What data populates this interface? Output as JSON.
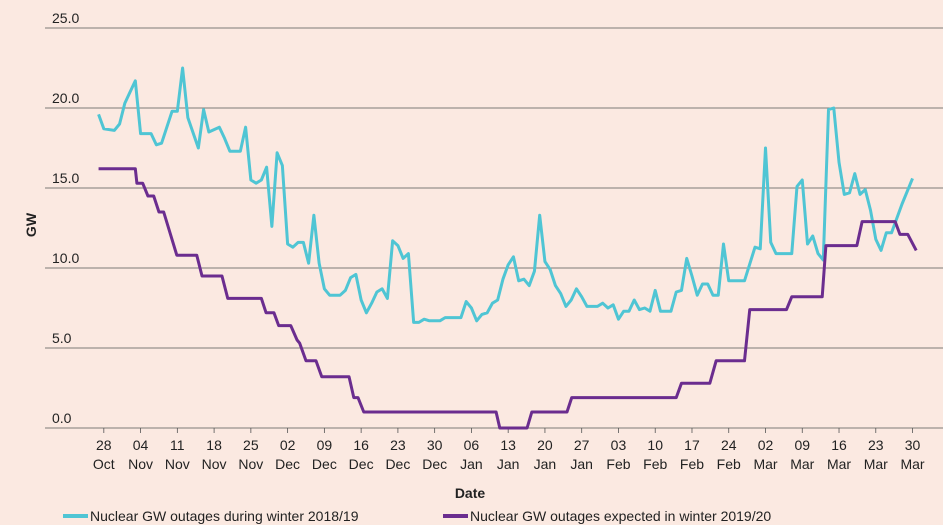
{
  "chart_data": {
    "type": "line",
    "xlabel": "Date",
    "ylabel": "GW",
    "xlim": [
      -11.2,
      159.8
    ],
    "ylim": [
      0,
      25
    ],
    "xticks": [
      {
        "value": 0,
        "label": "28 Oct"
      },
      {
        "value": 7,
        "label": "04 Nov"
      },
      {
        "value": 14,
        "label": "11 Nov"
      },
      {
        "value": 21,
        "label": "18 Nov"
      },
      {
        "value": 28,
        "label": "25 Nov"
      },
      {
        "value": 35,
        "label": "02 Dec"
      },
      {
        "value": 42,
        "label": "09 Dec"
      },
      {
        "value": 49,
        "label": "16 Dec"
      },
      {
        "value": 56,
        "label": "23 Dec"
      },
      {
        "value": 63,
        "label": "30 Dec"
      },
      {
        "value": 70,
        "label": "06 Jan"
      },
      {
        "value": 77,
        "label": "13 Jan"
      },
      {
        "value": 84,
        "label": "20 Jan"
      },
      {
        "value": 91,
        "label": "27 Jan"
      },
      {
        "value": 98,
        "label": "03 Feb"
      },
      {
        "value": 105,
        "label": "10 Feb"
      },
      {
        "value": 112,
        "label": "17 Feb"
      },
      {
        "value": 119,
        "label": "24 Feb"
      },
      {
        "value": 126,
        "label": "02 Mar"
      },
      {
        "value": 133,
        "label": "09 Mar"
      },
      {
        "value": 140,
        "label": "16 Mar"
      },
      {
        "value": 147,
        "label": "23 Mar"
      },
      {
        "value": 154,
        "label": "30 Mar"
      }
    ],
    "yticks": [
      {
        "value": 0,
        "label": "0.0"
      },
      {
        "value": 5,
        "label": "5.0"
      },
      {
        "value": 10,
        "label": "10.0"
      },
      {
        "value": 15,
        "label": "15.0"
      },
      {
        "value": 20,
        "label": "20.0"
      },
      {
        "value": 25,
        "label": "25.0"
      }
    ],
    "grid": true,
    "legend": "bottom",
    "series": [
      {
        "name": "Nuclear GW outages during winter 2018/19",
        "color": "#4fc5d4",
        "x": [
          -1,
          0,
          2,
          3,
          4,
          6,
          7,
          9,
          10,
          11,
          13,
          14,
          15,
          16,
          18,
          19,
          20,
          22,
          23,
          24,
          26,
          27,
          28,
          29,
          30,
          31,
          32,
          33,
          34,
          35,
          36,
          37,
          38,
          39,
          40,
          41,
          42,
          43,
          45,
          46,
          47,
          48,
          49,
          50,
          51,
          52,
          53,
          54,
          55,
          56,
          57,
          58,
          59,
          60,
          61,
          62,
          64,
          65,
          68,
          69,
          70,
          71,
          72,
          73,
          74,
          75,
          76,
          77,
          78,
          79,
          80,
          81,
          82,
          83,
          84,
          85,
          86,
          87,
          88,
          89,
          90,
          91,
          92,
          94,
          95,
          96,
          97,
          98,
          99,
          100,
          101,
          102,
          103,
          104,
          105,
          106,
          108,
          109,
          110,
          111,
          112,
          113,
          114,
          115,
          116,
          117,
          118,
          119,
          122,
          124,
          125,
          126,
          127,
          128,
          131,
          132,
          133,
          134,
          135,
          136,
          137,
          138,
          139,
          140,
          141,
          142,
          143,
          144,
          145,
          146,
          147,
          148,
          149,
          150,
          151,
          152,
          154
        ],
        "values": [
          19.6,
          18.7,
          18.6,
          19,
          20.3,
          21.7,
          18.4,
          18.4,
          17.7,
          17.8,
          19.8,
          19.8,
          22.5,
          19.4,
          17.5,
          19.9,
          18.5,
          18.8,
          18.1,
          17.3,
          17.3,
          18.8,
          15.5,
          15.3,
          15.5,
          16.3,
          12.6,
          17.2,
          16.4,
          11.5,
          11.3,
          11.6,
          11.6,
          10.3,
          13.3,
          10.3,
          8.7,
          8.3,
          8.3,
          8.6,
          9.4,
          9.6,
          8,
          7.2,
          7.8,
          8.5,
          8.7,
          8.1,
          11.7,
          11.4,
          10.6,
          10.9,
          6.6,
          6.6,
          6.8,
          6.7,
          6.7,
          6.9,
          6.9,
          7.9,
          7.5,
          6.7,
          7.1,
          7.2,
          7.8,
          8,
          9.3,
          10.2,
          10.7,
          9.2,
          9.3,
          8.9,
          9.8,
          13.3,
          10.4,
          9.9,
          8.9,
          8.4,
          7.6,
          8,
          8.7,
          8.2,
          7.6,
          7.6,
          7.8,
          7.5,
          7.7,
          6.8,
          7.3,
          7.3,
          8,
          7.4,
          7.5,
          7.3,
          8.6,
          7.3,
          7.3,
          8.5,
          8.6,
          10.6,
          9.5,
          8.3,
          9,
          9,
          8.3,
          8.3,
          11.5,
          9.2,
          9.2,
          11.3,
          11.2,
          17.5,
          11.6,
          10.9,
          10.9,
          15.1,
          15.5,
          11.5,
          12,
          10.9,
          10.5,
          19.9,
          20,
          16.6,
          14.6,
          14.7,
          15.9,
          14.6,
          14.9,
          13.6,
          11.8,
          11.1,
          12.2,
          12.2,
          13.1,
          14,
          15.6
        ]
      },
      {
        "name": "Nuclear GW outages expected in winter 2019/20",
        "color": "#6b2d8f",
        "x": [
          -1,
          6,
          6.3,
          7.4,
          8.4,
          9.5,
          10.5,
          11.4,
          13.9,
          17.7,
          18.7,
          22.5,
          23.6,
          30,
          30.9,
          32.4,
          33.3,
          35.6,
          36.8,
          37.3,
          38.5,
          40.4,
          41.5,
          46.7,
          47.6,
          48.4,
          49.5,
          74.7,
          75.4,
          80.6,
          81.5,
          88.2,
          89.1,
          109,
          110,
          115.4,
          116.6,
          122,
          123,
          130,
          131,
          136.8,
          137.5,
          143.4,
          144.4,
          150.7,
          151.6,
          153.1,
          154.7
        ],
        "values": [
          16.2,
          16.2,
          15.3,
          15.3,
          14.5,
          14.5,
          13.5,
          13.5,
          10.8,
          10.8,
          9.5,
          9.5,
          8.1,
          8.1,
          7.2,
          7.2,
          6.4,
          6.4,
          5.5,
          5.3,
          4.2,
          4.2,
          3.2,
          3.2,
          1.9,
          1.9,
          1,
          1,
          0,
          0,
          1,
          1,
          1.9,
          1.9,
          2.8,
          2.8,
          4.2,
          4.2,
          7.4,
          7.4,
          8.2,
          8.2,
          11.4,
          11.4,
          12.9,
          12.9,
          12.1,
          12.1,
          11.1
        ]
      }
    ]
  }
}
